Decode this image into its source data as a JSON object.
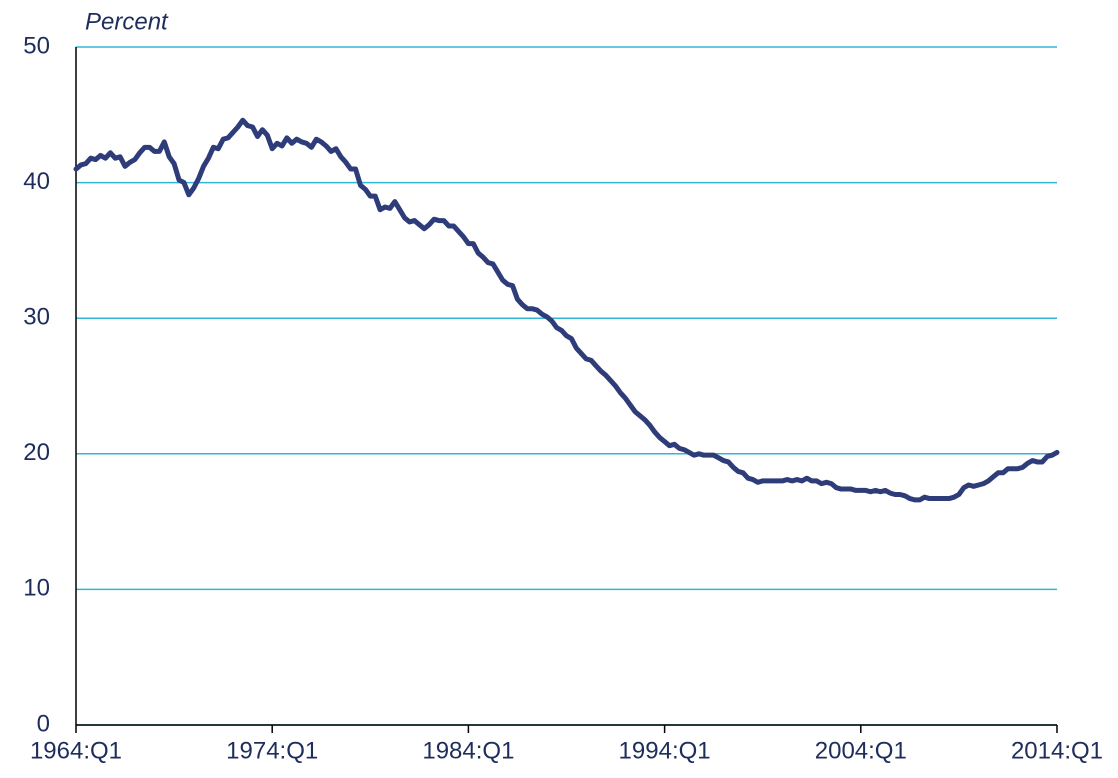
{
  "chart_data": {
    "type": "line",
    "title": "Percent",
    "categories": [
      "1964:Q1",
      null,
      null,
      null,
      null,
      null,
      null,
      null,
      null,
      null,
      null,
      null,
      null,
      null,
      null,
      null,
      null,
      null,
      null,
      null,
      null,
      null,
      null,
      null,
      null,
      null,
      null,
      null,
      null,
      null,
      null,
      null,
      null,
      null,
      null,
      null,
      null,
      null,
      null,
      null,
      "1974:Q1",
      null,
      null,
      null,
      null,
      null,
      null,
      null,
      null,
      null,
      null,
      null,
      null,
      null,
      null,
      null,
      null,
      null,
      null,
      null,
      null,
      null,
      null,
      null,
      null,
      null,
      null,
      null,
      null,
      null,
      null,
      null,
      null,
      null,
      null,
      null,
      null,
      null,
      null,
      null,
      "1984:Q1",
      null,
      null,
      null,
      null,
      null,
      null,
      null,
      null,
      null,
      null,
      null,
      null,
      null,
      null,
      null,
      null,
      null,
      null,
      null,
      null,
      null,
      null,
      null,
      null,
      null,
      null,
      null,
      null,
      null,
      null,
      null,
      null,
      null,
      null,
      null,
      null,
      null,
      null,
      null,
      "1994:Q1",
      null,
      null,
      null,
      null,
      null,
      null,
      null,
      null,
      null,
      null,
      null,
      null,
      null,
      null,
      null,
      null,
      null,
      null,
      null,
      null,
      null,
      null,
      null,
      null,
      null,
      null,
      null,
      null,
      null,
      null,
      null,
      null,
      null,
      null,
      null,
      null,
      null,
      null,
      null,
      "2004:Q1",
      null,
      null,
      null,
      null,
      null,
      null,
      null,
      null,
      null,
      null,
      null,
      null,
      null,
      null,
      null,
      null,
      null,
      null,
      null,
      null,
      null,
      null,
      null,
      null,
      null,
      null,
      null,
      null,
      null,
      null,
      null,
      null,
      null,
      null,
      null,
      null,
      null,
      null,
      null,
      "2014:Q1"
    ],
    "values": [
      41.0,
      41.3,
      41.4,
      41.8,
      41.7,
      42.0,
      41.8,
      42.2,
      41.8,
      41.9,
      41.2,
      41.5,
      41.7,
      42.2,
      42.6,
      42.6,
      42.3,
      42.3,
      43.0,
      41.9,
      41.4,
      40.2,
      40.0,
      39.1,
      39.6,
      40.3,
      41.2,
      41.8,
      42.6,
      42.5,
      43.2,
      43.3,
      43.7,
      44.1,
      44.6,
      44.2,
      44.1,
      43.4,
      43.9,
      43.5,
      42.5,
      42.9,
      42.7,
      43.3,
      42.9,
      43.2,
      43.0,
      42.9,
      42.6,
      43.2,
      43.0,
      42.7,
      42.3,
      42.5,
      41.9,
      41.5,
      41.0,
      41.0,
      39.8,
      39.5,
      39.0,
      39.0,
      38.0,
      38.2,
      38.1,
      38.6,
      38.0,
      37.4,
      37.1,
      37.2,
      36.9,
      36.6,
      36.9,
      37.3,
      37.2,
      37.2,
      36.8,
      36.8,
      36.4,
      36.0,
      35.5,
      35.5,
      34.8,
      34.5,
      34.1,
      34.0,
      33.4,
      32.8,
      32.5,
      32.4,
      31.4,
      31.0,
      30.7,
      30.7,
      30.6,
      30.3,
      30.1,
      29.8,
      29.3,
      29.1,
      28.7,
      28.5,
      27.8,
      27.4,
      27.0,
      26.9,
      26.5,
      26.1,
      25.8,
      25.4,
      25.0,
      24.5,
      24.1,
      23.6,
      23.1,
      22.8,
      22.5,
      22.1,
      21.6,
      21.2,
      20.9,
      20.6,
      20.7,
      20.4,
      20.3,
      20.1,
      19.9,
      20.0,
      19.9,
      19.9,
      19.9,
      19.7,
      19.5,
      19.4,
      19.0,
      18.7,
      18.6,
      18.2,
      18.1,
      17.9,
      18.0,
      18.0,
      18.0,
      18.0,
      18.0,
      18.1,
      18.0,
      18.1,
      18.0,
      18.2,
      18.0,
      18.0,
      17.8,
      17.9,
      17.8,
      17.5,
      17.4,
      17.4,
      17.4,
      17.3,
      17.3,
      17.3,
      17.2,
      17.3,
      17.2,
      17.3,
      17.1,
      17.0,
      17.0,
      16.9,
      16.7,
      16.6,
      16.6,
      16.8,
      16.7,
      16.7,
      16.7,
      16.7,
      16.7,
      16.8,
      17.0,
      17.5,
      17.7,
      17.6,
      17.7,
      17.8,
      18.0,
      18.3,
      18.6,
      18.6,
      18.9,
      18.9,
      18.9,
      19.0,
      19.3,
      19.5,
      19.4,
      19.4,
      19.8,
      19.9,
      20.1
    ],
    "color": "#2e3d7a",
    "grid_color": "#33b6d6",
    "ylim": [
      0,
      50
    ],
    "yticks": [
      0,
      10,
      20,
      30,
      40,
      50
    ],
    "grid": true
  }
}
